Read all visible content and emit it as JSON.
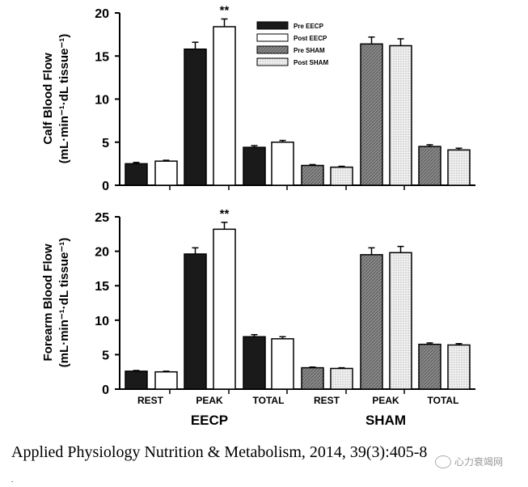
{
  "chart_data": [
    {
      "type": "bar",
      "id": "calf",
      "ylabel_line1": "Calf Blood Flow",
      "ylabel_line2": "(mL·min⁻¹·dL tissue⁻¹)",
      "ylim": [
        0,
        20
      ],
      "yticks": [
        "0",
        "5",
        "10",
        "15",
        "20"
      ],
      "groups": [
        {
          "name": "EECP",
          "categories": [
            "REST",
            "PEAK",
            "TOTAL"
          ]
        },
        {
          "name": "SHAM",
          "categories": [
            "REST",
            "PEAK",
            "TOTAL"
          ]
        }
      ],
      "series": [
        {
          "name": "Pre EECP",
          "group": "EECP",
          "values": [
            2.5,
            15.8,
            4.4
          ],
          "errors": [
            0.15,
            0.8,
            0.2
          ]
        },
        {
          "name": "Post EECP",
          "group": "EECP",
          "values": [
            2.8,
            18.4,
            5.0
          ],
          "errors": [
            0.1,
            0.9,
            0.2
          ]
        },
        {
          "name": "Pre SHAM",
          "group": "SHAM",
          "values": [
            2.3,
            16.4,
            4.5
          ],
          "errors": [
            0.1,
            0.8,
            0.2
          ]
        },
        {
          "name": "Post SHAM",
          "group": "SHAM",
          "values": [
            2.1,
            16.2,
            4.1
          ],
          "errors": [
            0.1,
            0.8,
            0.2
          ]
        }
      ],
      "annotations": [
        {
          "text": "**",
          "series": "Post EECP",
          "category": "PEAK"
        }
      ],
      "legend": [
        "Pre EECP",
        "Post EECP",
        "Pre SHAM",
        "Post SHAM"
      ]
    },
    {
      "type": "bar",
      "id": "forearm",
      "ylabel_line1": "Forearm Blood Flow",
      "ylabel_line2": "(mL·min⁻¹·dL tissue⁻¹)",
      "ylim": [
        0,
        25
      ],
      "yticks": [
        "0",
        "5",
        "10",
        "15",
        "20",
        "25"
      ],
      "groups": [
        {
          "name": "EECP",
          "categories": [
            "REST",
            "PEAK",
            "TOTAL"
          ]
        },
        {
          "name": "SHAM",
          "categories": [
            "REST",
            "PEAK",
            "TOTAL"
          ]
        }
      ],
      "series": [
        {
          "name": "Pre EECP",
          "group": "EECP",
          "values": [
            2.6,
            19.6,
            7.6
          ],
          "errors": [
            0.1,
            0.9,
            0.3
          ]
        },
        {
          "name": "Post EECP",
          "group": "EECP",
          "values": [
            2.5,
            23.2,
            7.3
          ],
          "errors": [
            0.1,
            1.0,
            0.3
          ]
        },
        {
          "name": "Pre SHAM",
          "group": "SHAM",
          "values": [
            3.1,
            19.5,
            6.5
          ],
          "errors": [
            0.1,
            1.0,
            0.2
          ]
        },
        {
          "name": "Post SHAM",
          "group": "SHAM",
          "values": [
            3.0,
            19.8,
            6.4
          ],
          "errors": [
            0.1,
            0.9,
            0.2
          ]
        }
      ],
      "annotations": [
        {
          "text": "**",
          "series": "Post EECP",
          "category": "PEAK"
        }
      ],
      "x_categories": [
        "REST",
        "PEAK",
        "TOTAL",
        "REST",
        "PEAK",
        "TOTAL"
      ],
      "group_labels": [
        "EECP",
        "SHAM"
      ]
    }
  ],
  "colors": {
    "pre_eecp": "#1a1a1a",
    "post_eecp": "#ffffff",
    "pre_sham": "#8a8a8a",
    "post_sham": "#e4e4e4",
    "axis": "#000000"
  },
  "citation": "Applied Physiology Nutrition & Metabolism, 2014, 39(3):405-8",
  "citation_tail": ".",
  "watermark": "心力衰竭网"
}
